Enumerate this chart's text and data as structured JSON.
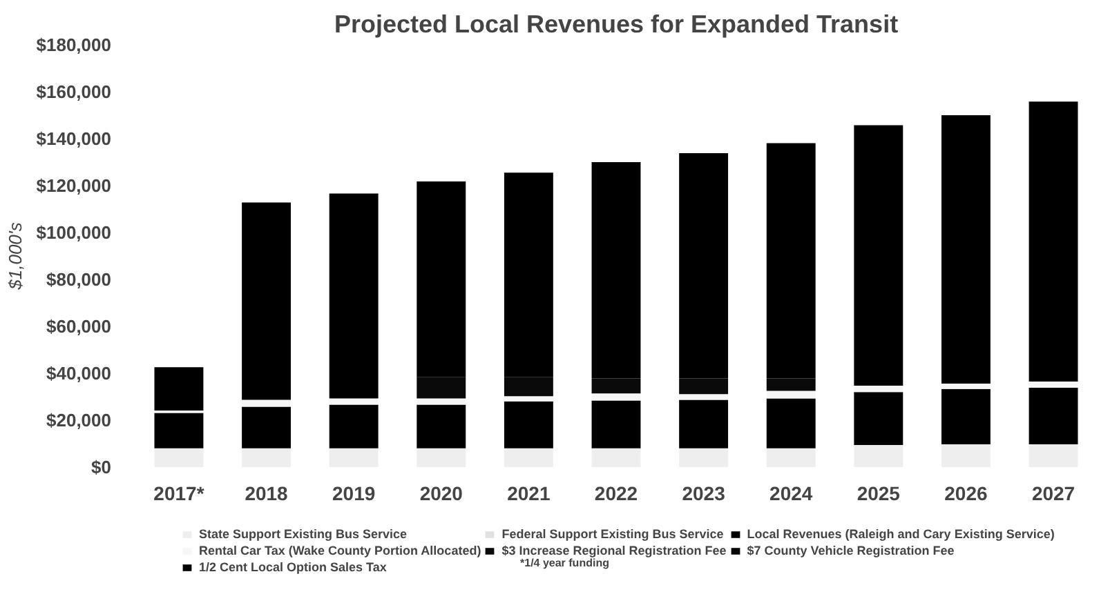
{
  "chart_data": {
    "type": "bar",
    "stacked": true,
    "title": "Projected Local Revenues for Expanded Transit",
    "ylabel": "$1,000's",
    "categories": [
      "2017*",
      "2018",
      "2019",
      "2020",
      "2021",
      "2022",
      "2023",
      "2024",
      "2025",
      "2026",
      "2027"
    ],
    "series": [
      {
        "name": "State Support Existing Bus Service",
        "color": "#eeeeee",
        "values": [
          8000,
          8000,
          8000,
          8000,
          8000,
          8000,
          8000,
          8000,
          9400,
          9700,
          9700
        ]
      },
      {
        "name": "Federal Support Existing Bus Service",
        "color": "#e0e0e0",
        "values": [
          null,
          null,
          null,
          null,
          null,
          null,
          null,
          null,
          null,
          null,
          null
        ]
      },
      {
        "name": "Local Revenues (Raleigh and Cary Existing Service)",
        "color": "#000000",
        "values": [
          15100,
          17700,
          18600,
          18600,
          20000,
          20400,
          20700,
          21300,
          22600,
          23600,
          24100
        ]
      },
      {
        "name": "Rental Car Tax (Wake County Portion Allocated)",
        "color": "#f6f6f6",
        "values": [
          1000,
          3000,
          2700,
          2700,
          2200,
          3000,
          2400,
          3200,
          2700,
          2300,
          2700
        ]
      },
      {
        "name": "$3 Increase Regional Registration Fee",
        "color": "#0a0a0a",
        "values": [
          null,
          null,
          null,
          9000,
          8100,
          6400,
          6700,
          5300,
          null,
          null,
          null
        ]
      },
      {
        "name": "$7 County Vehicle Registration Fee",
        "color": "#050505",
        "values": [
          null,
          null,
          null,
          null,
          null,
          null,
          null,
          null,
          null,
          null,
          null
        ]
      },
      {
        "name": "1/2 Cent Local Option Sales Tax",
        "color": "#000000",
        "values": [
          18500,
          84100,
          87300,
          83500,
          87200,
          92200,
          96000,
          100300,
          111000,
          114400,
          119300
        ]
      }
    ],
    "ylim": [
      0,
      180000
    ],
    "yticks": [
      {
        "value": 0,
        "label": "$0"
      },
      {
        "value": 20000,
        "label": "$20,000"
      },
      {
        "value": 40000,
        "label": "$40,000"
      },
      {
        "value": 60000,
        "label": "$60,000"
      },
      {
        "value": 80000,
        "label": "$80,000"
      },
      {
        "value": 100000,
        "label": "$100,000"
      },
      {
        "value": 120000,
        "label": "$120,000"
      },
      {
        "value": 140000,
        "label": "$140,000"
      },
      {
        "value": 160000,
        "label": "$160,000"
      },
      {
        "value": 180000,
        "label": "$180,000"
      }
    ],
    "grid": false,
    "legend": "bottom",
    "annotations": [
      "*1/4 year funding"
    ]
  }
}
